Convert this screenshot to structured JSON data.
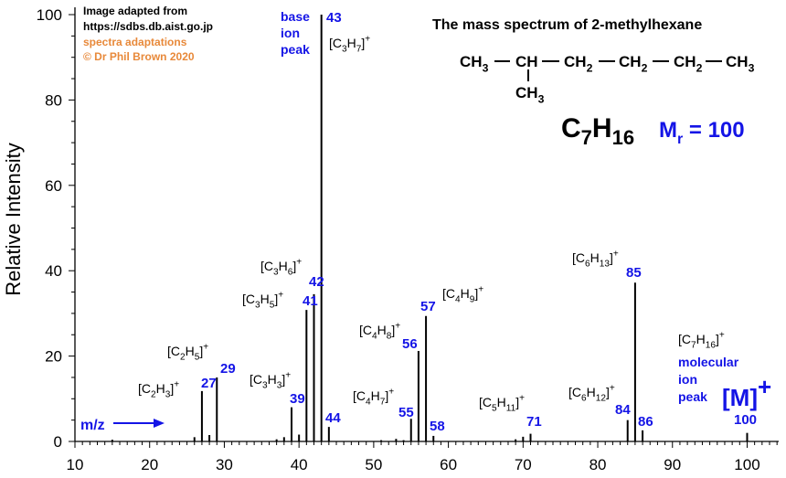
{
  "chart_data": {
    "type": "bar",
    "title": "The mass spectrum of 2-methylhexane",
    "ylabel": "Relative Intensity",
    "xlabel": "m/z",
    "xlim": [
      10,
      104
    ],
    "ylim": [
      0,
      100
    ],
    "x_ticks": [
      10,
      20,
      30,
      40,
      50,
      60,
      70,
      80,
      90,
      100
    ],
    "y_ticks": [
      0,
      20,
      40,
      60,
      80,
      100
    ],
    "peaks": [
      {
        "mz": 15,
        "intensity": 0.4
      },
      {
        "mz": 26,
        "intensity": 1.0
      },
      {
        "mz": 27,
        "intensity": 11.8
      },
      {
        "mz": 28,
        "intensity": 1.5
      },
      {
        "mz": 29,
        "intensity": 15.0
      },
      {
        "mz": 37,
        "intensity": 0.5
      },
      {
        "mz": 38,
        "intensity": 1.0
      },
      {
        "mz": 39,
        "intensity": 8.0
      },
      {
        "mz": 40,
        "intensity": 1.6
      },
      {
        "mz": 41,
        "intensity": 30.8
      },
      {
        "mz": 42,
        "intensity": 34.5
      },
      {
        "mz": 43,
        "intensity": 100
      },
      {
        "mz": 44,
        "intensity": 3.4
      },
      {
        "mz": 51,
        "intensity": 0.3
      },
      {
        "mz": 53,
        "intensity": 0.6
      },
      {
        "mz": 54,
        "intensity": 0.3
      },
      {
        "mz": 55,
        "intensity": 5.3
      },
      {
        "mz": 56,
        "intensity": 21.2
      },
      {
        "mz": 57,
        "intensity": 29.4
      },
      {
        "mz": 58,
        "intensity": 1.3
      },
      {
        "mz": 69,
        "intensity": 0.5
      },
      {
        "mz": 70,
        "intensity": 1.1
      },
      {
        "mz": 71,
        "intensity": 1.8
      },
      {
        "mz": 84,
        "intensity": 5.0
      },
      {
        "mz": 85,
        "intensity": 37.2
      },
      {
        "mz": 86,
        "intensity": 2.6
      },
      {
        "mz": 100,
        "intensity": 2.0
      }
    ],
    "peak_labels": [
      {
        "mz": 27,
        "number": "27",
        "ion": "[C2H3]+"
      },
      {
        "mz": 29,
        "number": "29",
        "ion": "[C2H5]+"
      },
      {
        "mz": 39,
        "number": "39",
        "ion": "[C3H3]+"
      },
      {
        "mz": 41,
        "number": "41",
        "ion": "[C3H5]+"
      },
      {
        "mz": 42,
        "number": "42",
        "ion": "[C3H6]+"
      },
      {
        "mz": 43,
        "number": "43",
        "ion": "[C3H7]+"
      },
      {
        "mz": 44,
        "number": "44",
        "ion": ""
      },
      {
        "mz": 55,
        "number": "55",
        "ion": "[C4H7]+"
      },
      {
        "mz": 56,
        "number": "56",
        "ion": "[C4H8]+"
      },
      {
        "mz": 57,
        "number": "57",
        "ion": "[C4H9]+"
      },
      {
        "mz": 58,
        "number": "58",
        "ion": ""
      },
      {
        "mz": 71,
        "number": "71",
        "ion": "[C5H11]+"
      },
      {
        "mz": 84,
        "number": "84",
        "ion": "[C6H12]+"
      },
      {
        "mz": 85,
        "number": "85",
        "ion": "[C6H13]+"
      },
      {
        "mz": 86,
        "number": "86",
        "ion": ""
      },
      {
        "mz": 100,
        "number": "100",
        "ion": "[C7H16]+"
      }
    ]
  },
  "credits": {
    "line1": "Image adapted from",
    "line2": "https://sdbs.db.aist.go.jp",
    "line3": "spectra adaptations",
    "line4": "© Dr Phil Brown 2020"
  },
  "base_peak_note": [
    "base",
    "ion",
    "peak"
  ],
  "molecular_ion_note": [
    "molecular",
    "ion",
    "peak"
  ],
  "molecular_ion_symbol": "[M]+",
  "structure": {
    "main_chain": [
      "CH3",
      "CH",
      "CH2",
      "CH2",
      "CH2",
      "CH3"
    ],
    "branch": "CH3"
  },
  "formula": "C7H16",
  "mr_text": "Mr = 100",
  "mz_marker": "m/z",
  "colors": {
    "annotation_blue": "#1414e6",
    "credit_orange": "#e8893a",
    "ink": "#000000"
  }
}
